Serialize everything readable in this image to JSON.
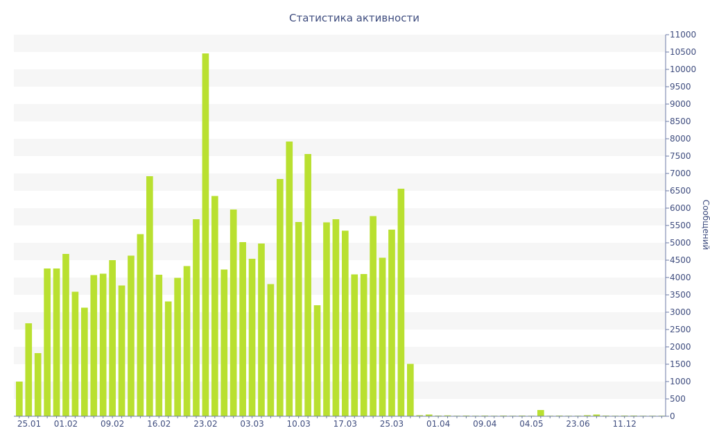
{
  "chart_data": {
    "type": "bar",
    "title": "Статистика активности",
    "xlabel": "",
    "ylabel": "Сообщений",
    "ylim": [
      0,
      11000
    ],
    "y_ticks": [
      0,
      500,
      1000,
      1500,
      2000,
      2500,
      3000,
      3500,
      4000,
      4500,
      5000,
      5500,
      6000,
      6500,
      7000,
      7500,
      8000,
      8500,
      9000,
      9500,
      10000,
      10500,
      11000
    ],
    "y_axis_position": "right",
    "grid": "alternating horizontal bands",
    "color": "#b9e030",
    "x_tick_labels": [
      {
        "index": 0,
        "label": "25.01"
      },
      {
        "index": 5,
        "label": "01.02"
      },
      {
        "index": 10,
        "label": "09.02"
      },
      {
        "index": 15,
        "label": "16.02"
      },
      {
        "index": 20,
        "label": "23.02"
      },
      {
        "index": 25,
        "label": "03.03"
      },
      {
        "index": 30,
        "label": "10.03"
      },
      {
        "index": 35,
        "label": "17.03"
      },
      {
        "index": 40,
        "label": "25.03"
      },
      {
        "index": 45,
        "label": "01.04"
      },
      {
        "index": 50,
        "label": "09.04"
      },
      {
        "index": 55,
        "label": "04.05"
      },
      {
        "index": 60,
        "label": "23.06"
      },
      {
        "index": 65,
        "label": "11.12"
      }
    ],
    "values": [
      1000,
      2680,
      1820,
      4260,
      4260,
      4680,
      3590,
      3130,
      4070,
      4110,
      4500,
      3770,
      4630,
      5250,
      6920,
      4080,
      3310,
      3990,
      4330,
      5680,
      10460,
      6350,
      4230,
      5960,
      5020,
      4540,
      4980,
      3810,
      6840,
      7920,
      5600,
      7560,
      3200,
      5590,
      5680,
      5350,
      4090,
      4100,
      5770,
      4570,
      5380,
      6560,
      1510,
      30,
      50,
      20,
      25,
      15,
      20,
      15,
      20,
      15,
      20,
      15,
      20,
      15,
      180,
      15,
      20,
      15,
      15,
      30,
      50,
      20,
      15,
      20,
      20,
      15,
      15,
      15
    ]
  }
}
